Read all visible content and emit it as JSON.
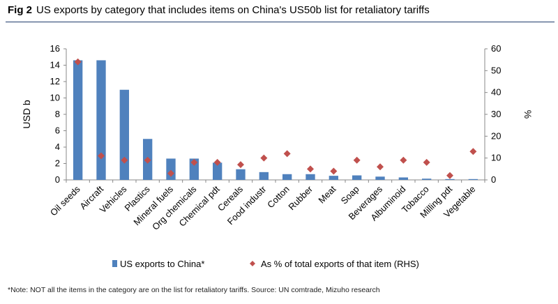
{
  "figure": {
    "label": "Fig 2",
    "title": "US exports by category that includes items on China's US50b list for retaliatory tariffs",
    "note": "*Note: NOT all the items in the category are on the list for retaliatory tariffs. Source: UN comtrade, Mizuho research"
  },
  "chart_data": {
    "type": "bar",
    "categories": [
      "Oil seeds",
      "Aircraft",
      "Vehicles",
      "Plastics",
      "Mineral fuels",
      "Org chemicals",
      "Chemical pdt",
      "Cereals",
      "Food industr",
      "Cotton",
      "Rubber",
      "Meat",
      "Soap",
      "Beverages",
      "Albuminoid",
      "Tobacco",
      "Milling pdt",
      "Vegetable"
    ],
    "series": [
      {
        "name": "US exports to China*",
        "type": "bar",
        "axis": "left",
        "color": "#4f81bd",
        "values": [
          14.6,
          14.6,
          11.0,
          5.0,
          2.6,
          2.6,
          2.1,
          1.3,
          0.95,
          0.7,
          0.7,
          0.5,
          0.55,
          0.4,
          0.3,
          0.15,
          0.1,
          0.1
        ]
      },
      {
        "name": "As % of total exports of that item (RHS)",
        "type": "scatter",
        "marker": "diamond",
        "axis": "right",
        "color": "#c0504d",
        "values": [
          54,
          11,
          9,
          9,
          3,
          8,
          8,
          7,
          10,
          12,
          5,
          4,
          9,
          6,
          9,
          8,
          2,
          13
        ]
      }
    ],
    "ylabel": "USD b",
    "ylim": [
      0,
      16
    ],
    "yticks": [
      0,
      2,
      4,
      6,
      8,
      10,
      12,
      14,
      16
    ],
    "y2label": "%",
    "y2lim": [
      0,
      60
    ],
    "y2ticks": [
      0,
      10,
      20,
      30,
      40,
      50,
      60
    ],
    "grid": false,
    "legend_position": "bottom"
  }
}
